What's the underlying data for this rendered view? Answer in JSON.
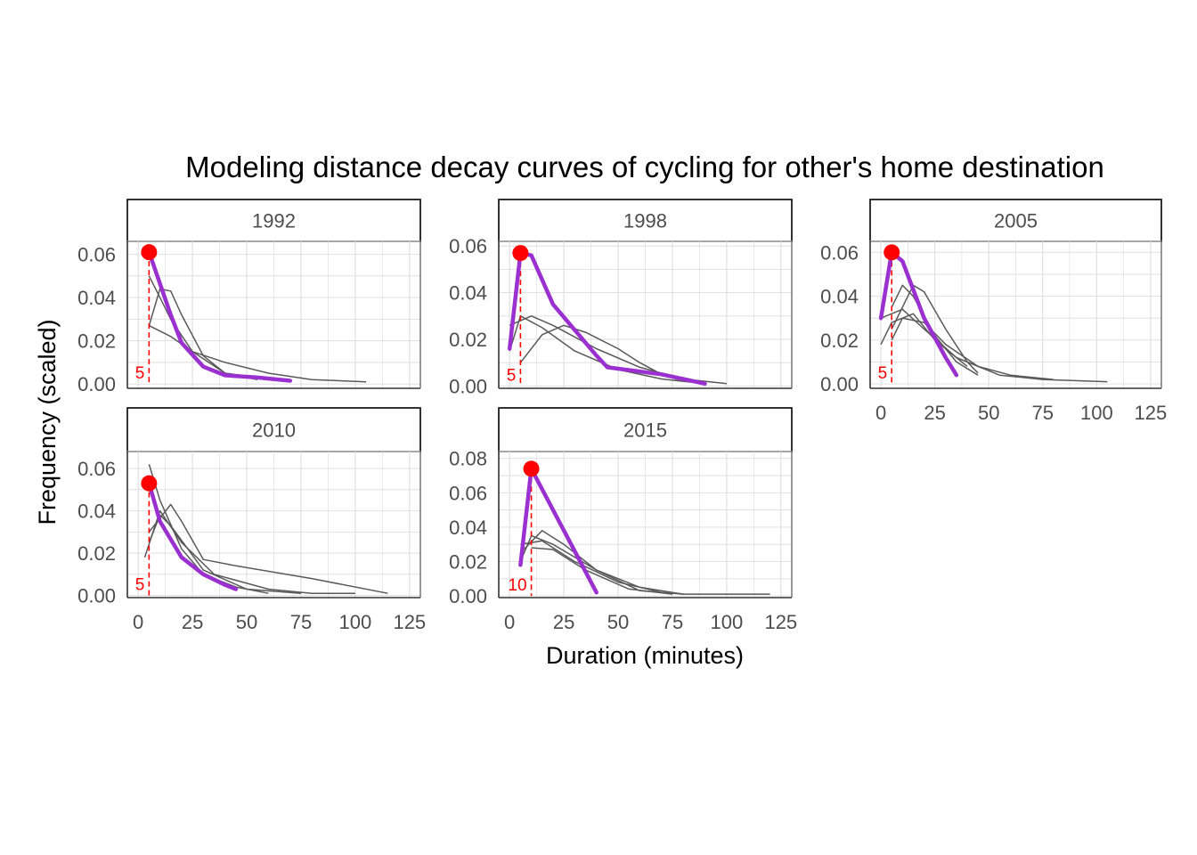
{
  "chart_data": {
    "type": "line",
    "title": "Modeling distance decay curves of cycling for other's home destination",
    "xlabel": "Duration (minutes)",
    "ylabel": "Frequency (scaled)",
    "xlim": [
      -5,
      130
    ],
    "x_ticks": [
      0,
      25,
      50,
      75,
      100,
      125
    ],
    "grid": true,
    "colors": {
      "model": "#9b30d0",
      "observed": "#595959",
      "peak_point": "#ff0000",
      "peak_line": "#ff0000",
      "strip_border": "#000000",
      "panel_border": "#333333",
      "grid": "#dedede"
    },
    "panels": [
      {
        "label": "1992",
        "ylim": [
          -0.002,
          0.066
        ],
        "y_ticks": [
          "0.00",
          "0.02",
          "0.04",
          "0.06"
        ],
        "y_tick_values": [
          0,
          0.02,
          0.04,
          0.06
        ],
        "show_x_axis": false,
        "peak": {
          "x": 5,
          "y": 0.061,
          "label": "5"
        },
        "model": [
          [
            5,
            0.061
          ],
          [
            15,
            0.032
          ],
          [
            20,
            0.019
          ],
          [
            30,
            0.008
          ],
          [
            40,
            0.004
          ],
          [
            55,
            0.003
          ],
          [
            70,
            0.0015
          ]
        ],
        "observed": [
          [
            [
              5,
              0.027
            ],
            [
              10,
              0.044
            ],
            [
              15,
              0.043
            ],
            [
              20,
              0.032
            ],
            [
              30,
              0.013
            ],
            [
              40,
              0.005
            ],
            [
              55,
              0.003
            ],
            [
              70,
              0.002
            ]
          ],
          [
            [
              5,
              0.027
            ],
            [
              15,
              0.022
            ],
            [
              25,
              0.015
            ],
            [
              40,
              0.01
            ],
            [
              60,
              0.005
            ],
            [
              80,
              0.002
            ],
            [
              105,
              0.001
            ]
          ],
          [
            [
              5,
              0.05
            ],
            [
              10,
              0.04
            ],
            [
              15,
              0.03
            ],
            [
              25,
              0.015
            ],
            [
              40,
              0.005
            ],
            [
              55,
              0.002
            ]
          ]
        ]
      },
      {
        "label": "1998",
        "ylim": [
          -0.001,
          0.062
        ],
        "y_ticks": [
          "0.00",
          "0.02",
          "0.04",
          "0.06"
        ],
        "y_tick_values": [
          0,
          0.02,
          0.04,
          0.06
        ],
        "show_x_axis": false,
        "peak": {
          "x": 5,
          "y": 0.057,
          "label": "5"
        },
        "model": [
          [
            0,
            0.016
          ],
          [
            5,
            0.057
          ],
          [
            10,
            0.056
          ],
          [
            20,
            0.035
          ],
          [
            40,
            0.013
          ],
          [
            45,
            0.008
          ],
          [
            70,
            0.005
          ],
          [
            90,
            0.001
          ]
        ],
        "observed": [
          [
            [
              0,
              0.026
            ],
            [
              10,
              0.03
            ],
            [
              20,
              0.026
            ],
            [
              40,
              0.016
            ],
            [
              60,
              0.008
            ],
            [
              80,
              0.003
            ],
            [
              100,
              0.001
            ]
          ],
          [
            [
              5,
              0.01
            ],
            [
              15,
              0.022
            ],
            [
              25,
              0.026
            ],
            [
              35,
              0.023
            ],
            [
              50,
              0.016
            ],
            [
              60,
              0.01
            ],
            [
              70,
              0.005
            ],
            [
              80,
              0.002
            ]
          ],
          [
            [
              0,
              0.015
            ],
            [
              5,
              0.03
            ],
            [
              15,
              0.025
            ],
            [
              30,
              0.015
            ],
            [
              50,
              0.007
            ],
            [
              70,
              0.003
            ],
            [
              90,
              0.001
            ]
          ]
        ]
      },
      {
        "label": "2005",
        "ylim": [
          -0.002,
          0.065
        ],
        "y_ticks": [
          "0.00",
          "0.02",
          "0.04",
          "0.06"
        ],
        "y_tick_values": [
          0,
          0.02,
          0.04,
          0.06
        ],
        "show_x_axis": true,
        "peak": {
          "x": 5,
          "y": 0.06,
          "label": "5"
        },
        "model": [
          [
            0,
            0.03
          ],
          [
            5,
            0.06
          ],
          [
            10,
            0.056
          ],
          [
            15,
            0.043
          ],
          [
            20,
            0.03
          ],
          [
            30,
            0.012
          ],
          [
            35,
            0.004
          ]
        ],
        "observed": [
          [
            [
              5,
              0.025
            ],
            [
              10,
              0.035
            ],
            [
              15,
              0.045
            ],
            [
              20,
              0.042
            ],
            [
              30,
              0.025
            ],
            [
              40,
              0.01
            ],
            [
              45,
              0.005
            ]
          ],
          [
            [
              0,
              0.03
            ],
            [
              10,
              0.034
            ],
            [
              20,
              0.025
            ],
            [
              35,
              0.012
            ],
            [
              55,
              0.004
            ],
            [
              75,
              0.002
            ],
            [
              105,
              0.001
            ]
          ],
          [
            [
              5,
              0.02
            ],
            [
              10,
              0.03
            ],
            [
              20,
              0.028
            ],
            [
              30,
              0.018
            ],
            [
              45,
              0.008
            ],
            [
              60,
              0.004
            ],
            [
              80,
              0.002
            ]
          ],
          [
            [
              5,
              0.035
            ],
            [
              10,
              0.045
            ],
            [
              15,
              0.04
            ],
            [
              25,
              0.022
            ],
            [
              35,
              0.01
            ],
            [
              45,
              0.004
            ]
          ],
          [
            [
              0,
              0.018
            ],
            [
              5,
              0.028
            ],
            [
              15,
              0.032
            ],
            [
              25,
              0.02
            ],
            [
              40,
              0.008
            ]
          ]
        ]
      },
      {
        "label": "2010",
        "ylim": [
          -0.001,
          0.068
        ],
        "y_ticks": [
          "0.00",
          "0.02",
          "0.04",
          "0.06"
        ],
        "y_tick_values": [
          0,
          0.02,
          0.04,
          0.06
        ],
        "show_x_axis": true,
        "peak": {
          "x": 5,
          "y": 0.053,
          "label": "5"
        },
        "model": [
          [
            5,
            0.053
          ],
          [
            10,
            0.035
          ],
          [
            20,
            0.018
          ],
          [
            30,
            0.01
          ],
          [
            40,
            0.005
          ],
          [
            45,
            0.003
          ]
        ],
        "observed": [
          [
            [
              5,
              0.062
            ],
            [
              10,
              0.045
            ],
            [
              20,
              0.022
            ],
            [
              30,
              0.01
            ],
            [
              45,
              0.004
            ],
            [
              60,
              0.001
            ]
          ],
          [
            [
              5,
              0.03
            ],
            [
              15,
              0.043
            ],
            [
              20,
              0.035
            ],
            [
              30,
              0.017
            ],
            [
              45,
              0.014
            ],
            [
              80,
              0.008
            ],
            [
              115,
              0.001
            ]
          ],
          [
            [
              5,
              0.025
            ],
            [
              10,
              0.038
            ],
            [
              15,
              0.033
            ],
            [
              30,
              0.012
            ],
            [
              50,
              0.003
            ],
            [
              75,
              0.001
            ]
          ],
          [
            [
              3,
              0.018
            ],
            [
              10,
              0.04
            ],
            [
              20,
              0.025
            ],
            [
              35,
              0.01
            ],
            [
              60,
              0.003
            ],
            [
              80,
              0.001
            ],
            [
              100,
              0.001
            ]
          ]
        ]
      },
      {
        "label": "2015",
        "ylim": [
          -0.001,
          0.084
        ],
        "y_ticks": [
          "0.00",
          "0.02",
          "0.04",
          "0.06",
          "0.08"
        ],
        "y_tick_values": [
          0,
          0.02,
          0.04,
          0.06,
          0.08
        ],
        "show_x_axis": true,
        "peak": {
          "x": 10,
          "y": 0.074,
          "label": "10"
        },
        "model": [
          [
            5,
            0.018
          ],
          [
            10,
            0.074
          ],
          [
            40,
            0.002
          ]
        ],
        "observed": [
          [
            [
              5,
              0.02
            ],
            [
              10,
              0.035
            ],
            [
              20,
              0.03
            ],
            [
              40,
              0.015
            ],
            [
              60,
              0.003
            ],
            [
              80,
              0.001
            ],
            [
              120,
              0.001
            ]
          ],
          [
            [
              5,
              0.025
            ],
            [
              15,
              0.038
            ],
            [
              25,
              0.03
            ],
            [
              40,
              0.015
            ],
            [
              60,
              0.005
            ],
            [
              80,
              0.001
            ]
          ],
          [
            [
              5,
              0.03
            ],
            [
              15,
              0.032
            ],
            [
              30,
              0.02
            ],
            [
              50,
              0.008
            ],
            [
              70,
              0.002
            ]
          ],
          [
            [
              10,
              0.028
            ],
            [
              20,
              0.027
            ],
            [
              35,
              0.015
            ],
            [
              55,
              0.004
            ],
            [
              75,
              0.001
            ]
          ]
        ]
      }
    ]
  }
}
